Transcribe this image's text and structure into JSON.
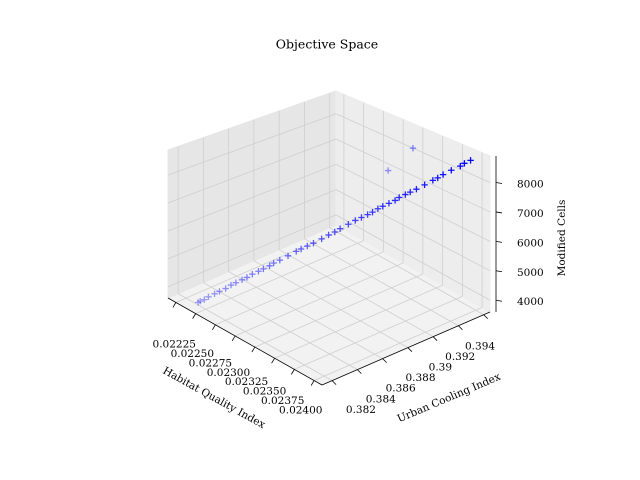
{
  "chart_data": {
    "type": "scatter3d",
    "title": "Objective Space",
    "xlabel": "Habitat Quality Index",
    "ylabel": "Urban Cooling Index",
    "zlabel": "Modified Cells",
    "color": "#0000ff",
    "marker": "+",
    "xlim": [
      0.02215,
      0.0241
    ],
    "ylim": [
      0.3812,
      0.3945
    ],
    "zlim": [
      3600,
      8900
    ],
    "xticks": [
      0.02225,
      {
        "value": 0.0225,
        "label": "0.02250"
      },
      0.02275,
      {
        "value": 0.023,
        "label": "0.02300"
      },
      0.02325,
      {
        "value": 0.0235,
        "label": "0.02350"
      },
      0.02375,
      {
        "value": 0.024,
        "label": "0.02400"
      }
    ],
    "yticks": [
      0.382,
      0.384,
      0.386,
      0.388,
      0.39,
      0.392,
      0.394
    ],
    "zticks": [
      4000,
      5000,
      6000,
      7000,
      8000
    ],
    "x": [
      0.0225,
      0.02251,
      0.02253,
      0.02255,
      0.02258,
      0.02261,
      0.02264,
      0.02266,
      0.02269,
      0.02272,
      0.02275,
      0.02277,
      0.0228,
      0.02283,
      0.02286,
      0.02288,
      0.02291,
      0.02295,
      0.02299,
      0.02302,
      0.02305,
      0.02308,
      0.02312,
      0.02316,
      0.02319,
      0.02321,
      0.02325,
      0.02329,
      0.02332,
      0.02335,
      0.02338,
      0.0234,
      0.02343,
      0.02346,
      0.02349,
      0.02351,
      0.02354,
      0.02357,
      0.0236,
      0.02364,
      0.02368,
      0.02371,
      0.02373,
      0.02377,
      0.02382,
      0.02384,
      0.02387,
      0.02313,
      0.02322
    ],
    "y": [
      0.3814,
      0.3815,
      0.3817,
      0.3819,
      0.3822,
      0.3824,
      0.3827,
      0.383,
      0.3832,
      0.3835,
      0.3837,
      0.384,
      0.3843,
      0.3845,
      0.3848,
      0.385,
      0.3853,
      0.3857,
      0.3861,
      0.3863,
      0.3866,
      0.3869,
      0.3873,
      0.3876,
      0.3879,
      0.3882,
      0.3886,
      0.3889,
      0.3892,
      0.3895,
      0.3897,
      0.39,
      0.3902,
      0.3905,
      0.3908,
      0.391,
      0.3913,
      0.3915,
      0.3918,
      0.3922,
      0.3926,
      0.3928,
      0.3931,
      0.3935,
      0.3939,
      0.3941,
      0.3944,
      0.3925,
      0.3939
    ],
    "z": [
      3950,
      3995,
      4040,
      4130,
      4225,
      4315,
      4405,
      4500,
      4590,
      4680,
      4770,
      4860,
      4950,
      5040,
      5135,
      5225,
      5315,
      5450,
      5590,
      5680,
      5770,
      5860,
      5995,
      6135,
      6225,
      6315,
      6455,
      6590,
      6680,
      6770,
      6860,
      6955,
      7045,
      7135,
      7225,
      7320,
      7410,
      7500,
      7590,
      7725,
      7865,
      7955,
      8045,
      8180,
      8320,
      8410,
      8500,
      7530,
      8220
    ]
  }
}
